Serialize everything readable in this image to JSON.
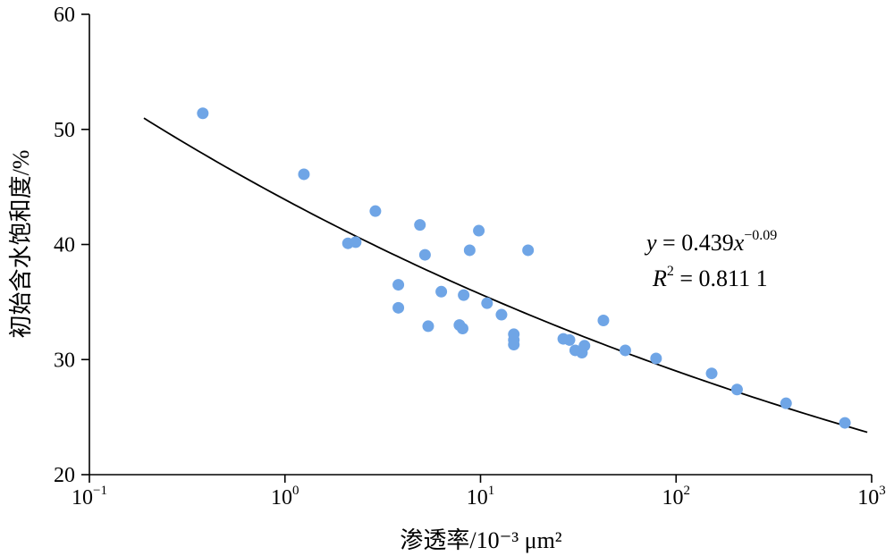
{
  "chart_data": {
    "type": "scatter",
    "title": "",
    "xlabel": "渗透率/10⁻³ μm²",
    "ylabel": "初始含水饱和度/%",
    "x_scale": "log",
    "xlim": [
      0.1,
      1000
    ],
    "ylim": [
      20,
      60
    ],
    "x_ticks": [
      {
        "value": 0.1,
        "base": "10",
        "exp": "−1"
      },
      {
        "value": 1,
        "base": "10",
        "exp": "0"
      },
      {
        "value": 10,
        "base": "10",
        "exp": "1"
      },
      {
        "value": 100,
        "base": "10",
        "exp": "2"
      },
      {
        "value": 1000,
        "base": "10",
        "exp": "3"
      }
    ],
    "y_ticks": [
      20,
      30,
      40,
      50,
      60
    ],
    "grid": false,
    "legend": "none",
    "colors": {
      "points": "#6fa5e6",
      "fit": "#000000"
    },
    "points": [
      {
        "x": 0.38,
        "y": 51.4
      },
      {
        "x": 1.25,
        "y": 46.1
      },
      {
        "x": 2.1,
        "y": 40.1
      },
      {
        "x": 2.3,
        "y": 40.2
      },
      {
        "x": 2.9,
        "y": 42.9
      },
      {
        "x": 3.8,
        "y": 36.5
      },
      {
        "x": 3.8,
        "y": 34.5
      },
      {
        "x": 4.9,
        "y": 41.7
      },
      {
        "x": 5.2,
        "y": 39.1
      },
      {
        "x": 5.4,
        "y": 32.9
      },
      {
        "x": 6.3,
        "y": 35.9
      },
      {
        "x": 7.8,
        "y": 33.0
      },
      {
        "x": 8.1,
        "y": 32.7
      },
      {
        "x": 8.2,
        "y": 35.6
      },
      {
        "x": 8.8,
        "y": 39.5
      },
      {
        "x": 9.8,
        "y": 41.2
      },
      {
        "x": 10.8,
        "y": 34.9
      },
      {
        "x": 12.8,
        "y": 33.9
      },
      {
        "x": 14.8,
        "y": 32.2
      },
      {
        "x": 14.8,
        "y": 31.7
      },
      {
        "x": 14.8,
        "y": 31.3
      },
      {
        "x": 17.5,
        "y": 39.5
      },
      {
        "x": 26.5,
        "y": 31.8
      },
      {
        "x": 28.5,
        "y": 31.7
      },
      {
        "x": 30.5,
        "y": 30.8
      },
      {
        "x": 33.0,
        "y": 30.6
      },
      {
        "x": 34.0,
        "y": 31.2
      },
      {
        "x": 42.5,
        "y": 33.4
      },
      {
        "x": 55.0,
        "y": 30.8
      },
      {
        "x": 79.0,
        "y": 30.1
      },
      {
        "x": 152.0,
        "y": 28.8
      },
      {
        "x": 205.0,
        "y": 27.4
      },
      {
        "x": 365.0,
        "y": 26.2
      },
      {
        "x": 730.0,
        "y": 24.5
      }
    ],
    "trendline": {
      "type": "power",
      "a": 0.439,
      "b": -0.09,
      "x_range": [
        0.19,
        950
      ]
    },
    "annotations": {
      "equation": {
        "y": "y",
        "eq": " = 0.439",
        "x": "x",
        "exp": "−0.09"
      },
      "r2": {
        "R": "R",
        "sup": "2",
        "eq": " = 0.811 1"
      }
    }
  }
}
